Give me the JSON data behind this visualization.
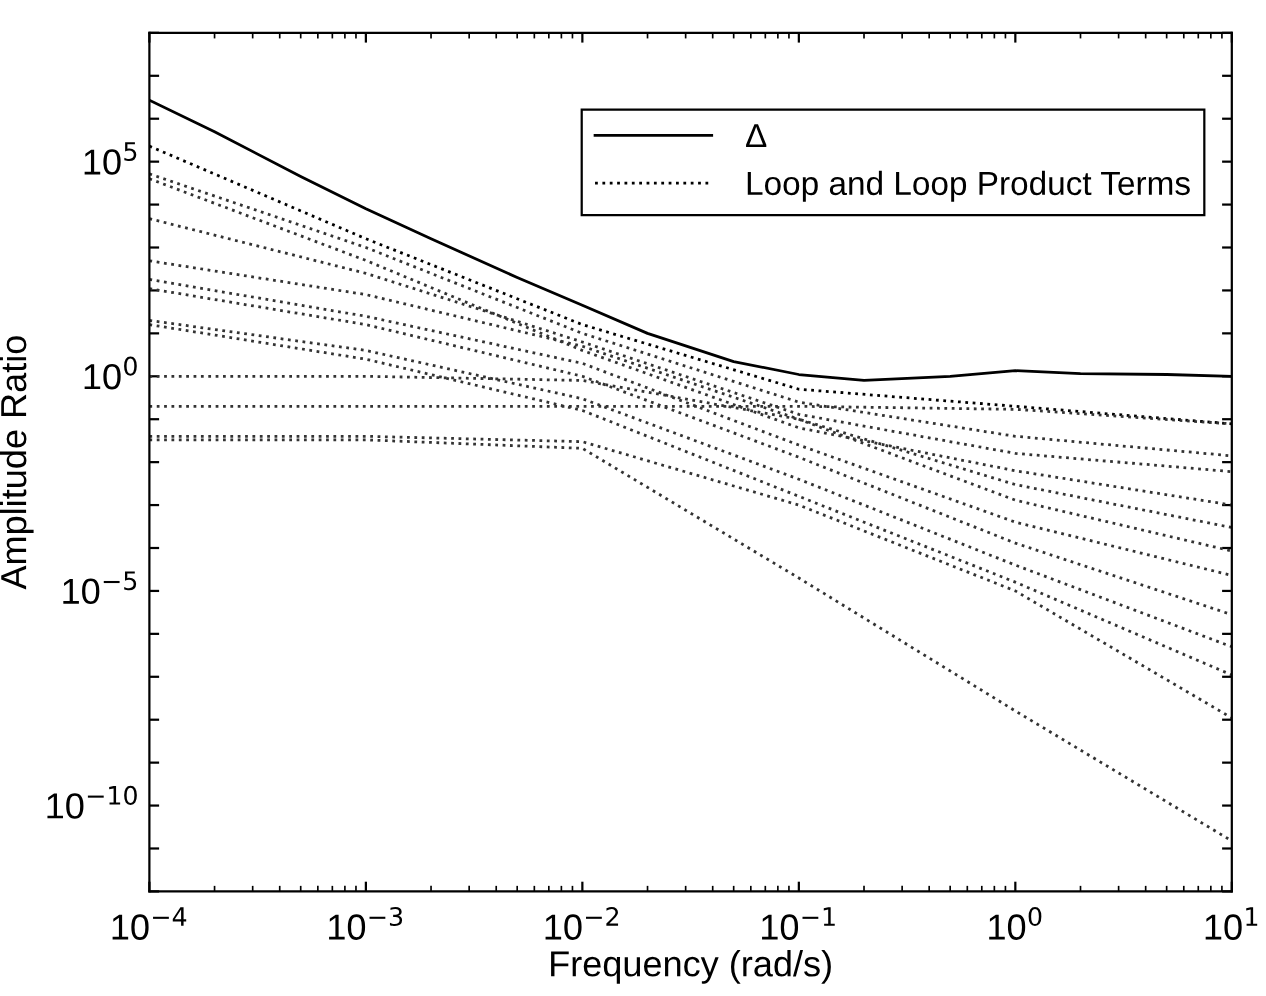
{
  "chart_data": {
    "type": "line",
    "xlabel": "Frequency (rad/s)",
    "ylabel": "Amplitude Ratio",
    "log": "xy",
    "grid": false,
    "legend": "top right",
    "marker": "none",
    "xlim": [
      0.0001,
      10
    ],
    "ylim": [
      1e-12,
      100000000.0
    ],
    "xticks": [
      {
        "value": 0.0001,
        "label": "10$^{−4}$"
      },
      {
        "value": 0.001,
        "label": "10$^{−3}$"
      },
      {
        "value": 0.01,
        "label": "10$^{−2}$"
      },
      {
        "value": 0.1,
        "label": "10$^{−1}$"
      },
      {
        "value": 1,
        "label": "10$^{0}$"
      },
      {
        "value": 10,
        "label": "10$^{1}$"
      }
    ],
    "yticks": [
      {
        "value": 1e-12,
        "label": null
      },
      {
        "value": 1e-11,
        "label": null
      },
      {
        "value": 1e-10,
        "label": "10$^{−10}$"
      },
      {
        "value": 1e-09,
        "label": null
      },
      {
        "value": 1e-08,
        "label": null
      },
      {
        "value": 1e-07,
        "label": null
      },
      {
        "value": 1e-06,
        "label": null
      },
      {
        "value": 1e-05,
        "label": "10$^{−5}$"
      },
      {
        "value": 0.0001,
        "label": null
      },
      {
        "value": 0.001,
        "label": null
      },
      {
        "value": 0.01,
        "label": null
      },
      {
        "value": 0.1,
        "label": null
      },
      {
        "value": 1,
        "label": "10$^{0}$"
      },
      {
        "value": 10,
        "label": null
      },
      {
        "value": 100,
        "label": null
      },
      {
        "value": 1000,
        "label": null
      },
      {
        "value": 10000,
        "label": null
      },
      {
        "value": 100000,
        "label": "10$^{5}$"
      },
      {
        "value": 1000000.0,
        "label": null
      },
      {
        "value": 10000000.0,
        "label": null
      },
      {
        "value": 100000000.0,
        "label": null
      }
    ],
    "x": [
      0.0001,
      0.001,
      0.01,
      0.1,
      1,
      10
    ],
    "series": [
      {
        "name": "Δ",
        "color": "#000000",
        "line_style": "solid",
        "x": [
          0.0001,
          0.0002,
          0.0005,
          0.001,
          0.002,
          0.005,
          0.01,
          0.02,
          0.05,
          0.1,
          0.2,
          0.5,
          1,
          2,
          5,
          10
        ],
        "values": [
          2700000.0,
          500000.0,
          45000,
          8000,
          1600,
          200,
          45,
          10,
          2.2,
          1.1,
          0.8,
          1.0,
          1.35,
          1.15,
          1.1,
          1.0
        ]
      },
      {
        "name": "Loop and Loop Product Terms",
        "color": "#000000",
        "line_style": "dotted",
        "values": [
          230000.0,
          1600,
          16,
          0.5,
          0.2,
          0.078
        ]
      },
      {
        "color": "#333333",
        "line_style": "dotted",
        "values": [
          52000,
          1000,
          10,
          0.25,
          0.04,
          0.014
        ]
      },
      {
        "color": "#333333",
        "line_style": "dotted",
        "values": [
          40000,
          500,
          4,
          0.063,
          0.0063,
          0.001
        ]
      },
      {
        "color": "#333333",
        "line_style": "dotted",
        "values": [
          4700,
          250,
          6.3,
          0.13,
          0.016,
          0.006
        ]
      },
      {
        "color": "#333333",
        "line_style": "dotted",
        "values": [
          490,
          80,
          5,
          0.1,
          0.0013,
          8.5e-05
        ]
      },
      {
        "color": "#333333",
        "line_style": "dotted",
        "values": [
          180,
          25,
          2,
          0.025,
          0.0004,
          2.3e-05
        ]
      },
      {
        "color": "#333333",
        "line_style": "dotted",
        "values": [
          110,
          16,
          1,
          0.013,
          0.00013,
          2.8e-06
        ]
      },
      {
        "color": "#333333",
        "line_style": "dotted",
        "values": [
          20,
          4,
          0.3,
          0.004,
          4e-05,
          5e-07
        ]
      },
      {
        "color": "#333333",
        "line_style": "dotted",
        "values": [
          16,
          2.5,
          0.16,
          0.0016,
          1.6e-05,
          1.1e-07
        ]
      },
      {
        "color": "#333333",
        "line_style": "dotted",
        "values": [
          1,
          1,
          0.8,
          0.1,
          0.003,
          0.0003
        ]
      },
      {
        "color": "#333333",
        "line_style": "dotted",
        "values": [
          0.2,
          0.2,
          0.2,
          0.2,
          0.17,
          0.078
        ]
      },
      {
        "color": "#333333",
        "line_style": "dotted",
        "values": [
          0.04,
          0.04,
          0.03,
          0.001,
          1e-05,
          1.1e-08
        ]
      },
      {
        "color": "#333333",
        "line_style": "dotted",
        "values": [
          0.033,
          0.033,
          0.021,
          2e-05,
          1.6e-08,
          1.5e-11
        ]
      }
    ]
  }
}
